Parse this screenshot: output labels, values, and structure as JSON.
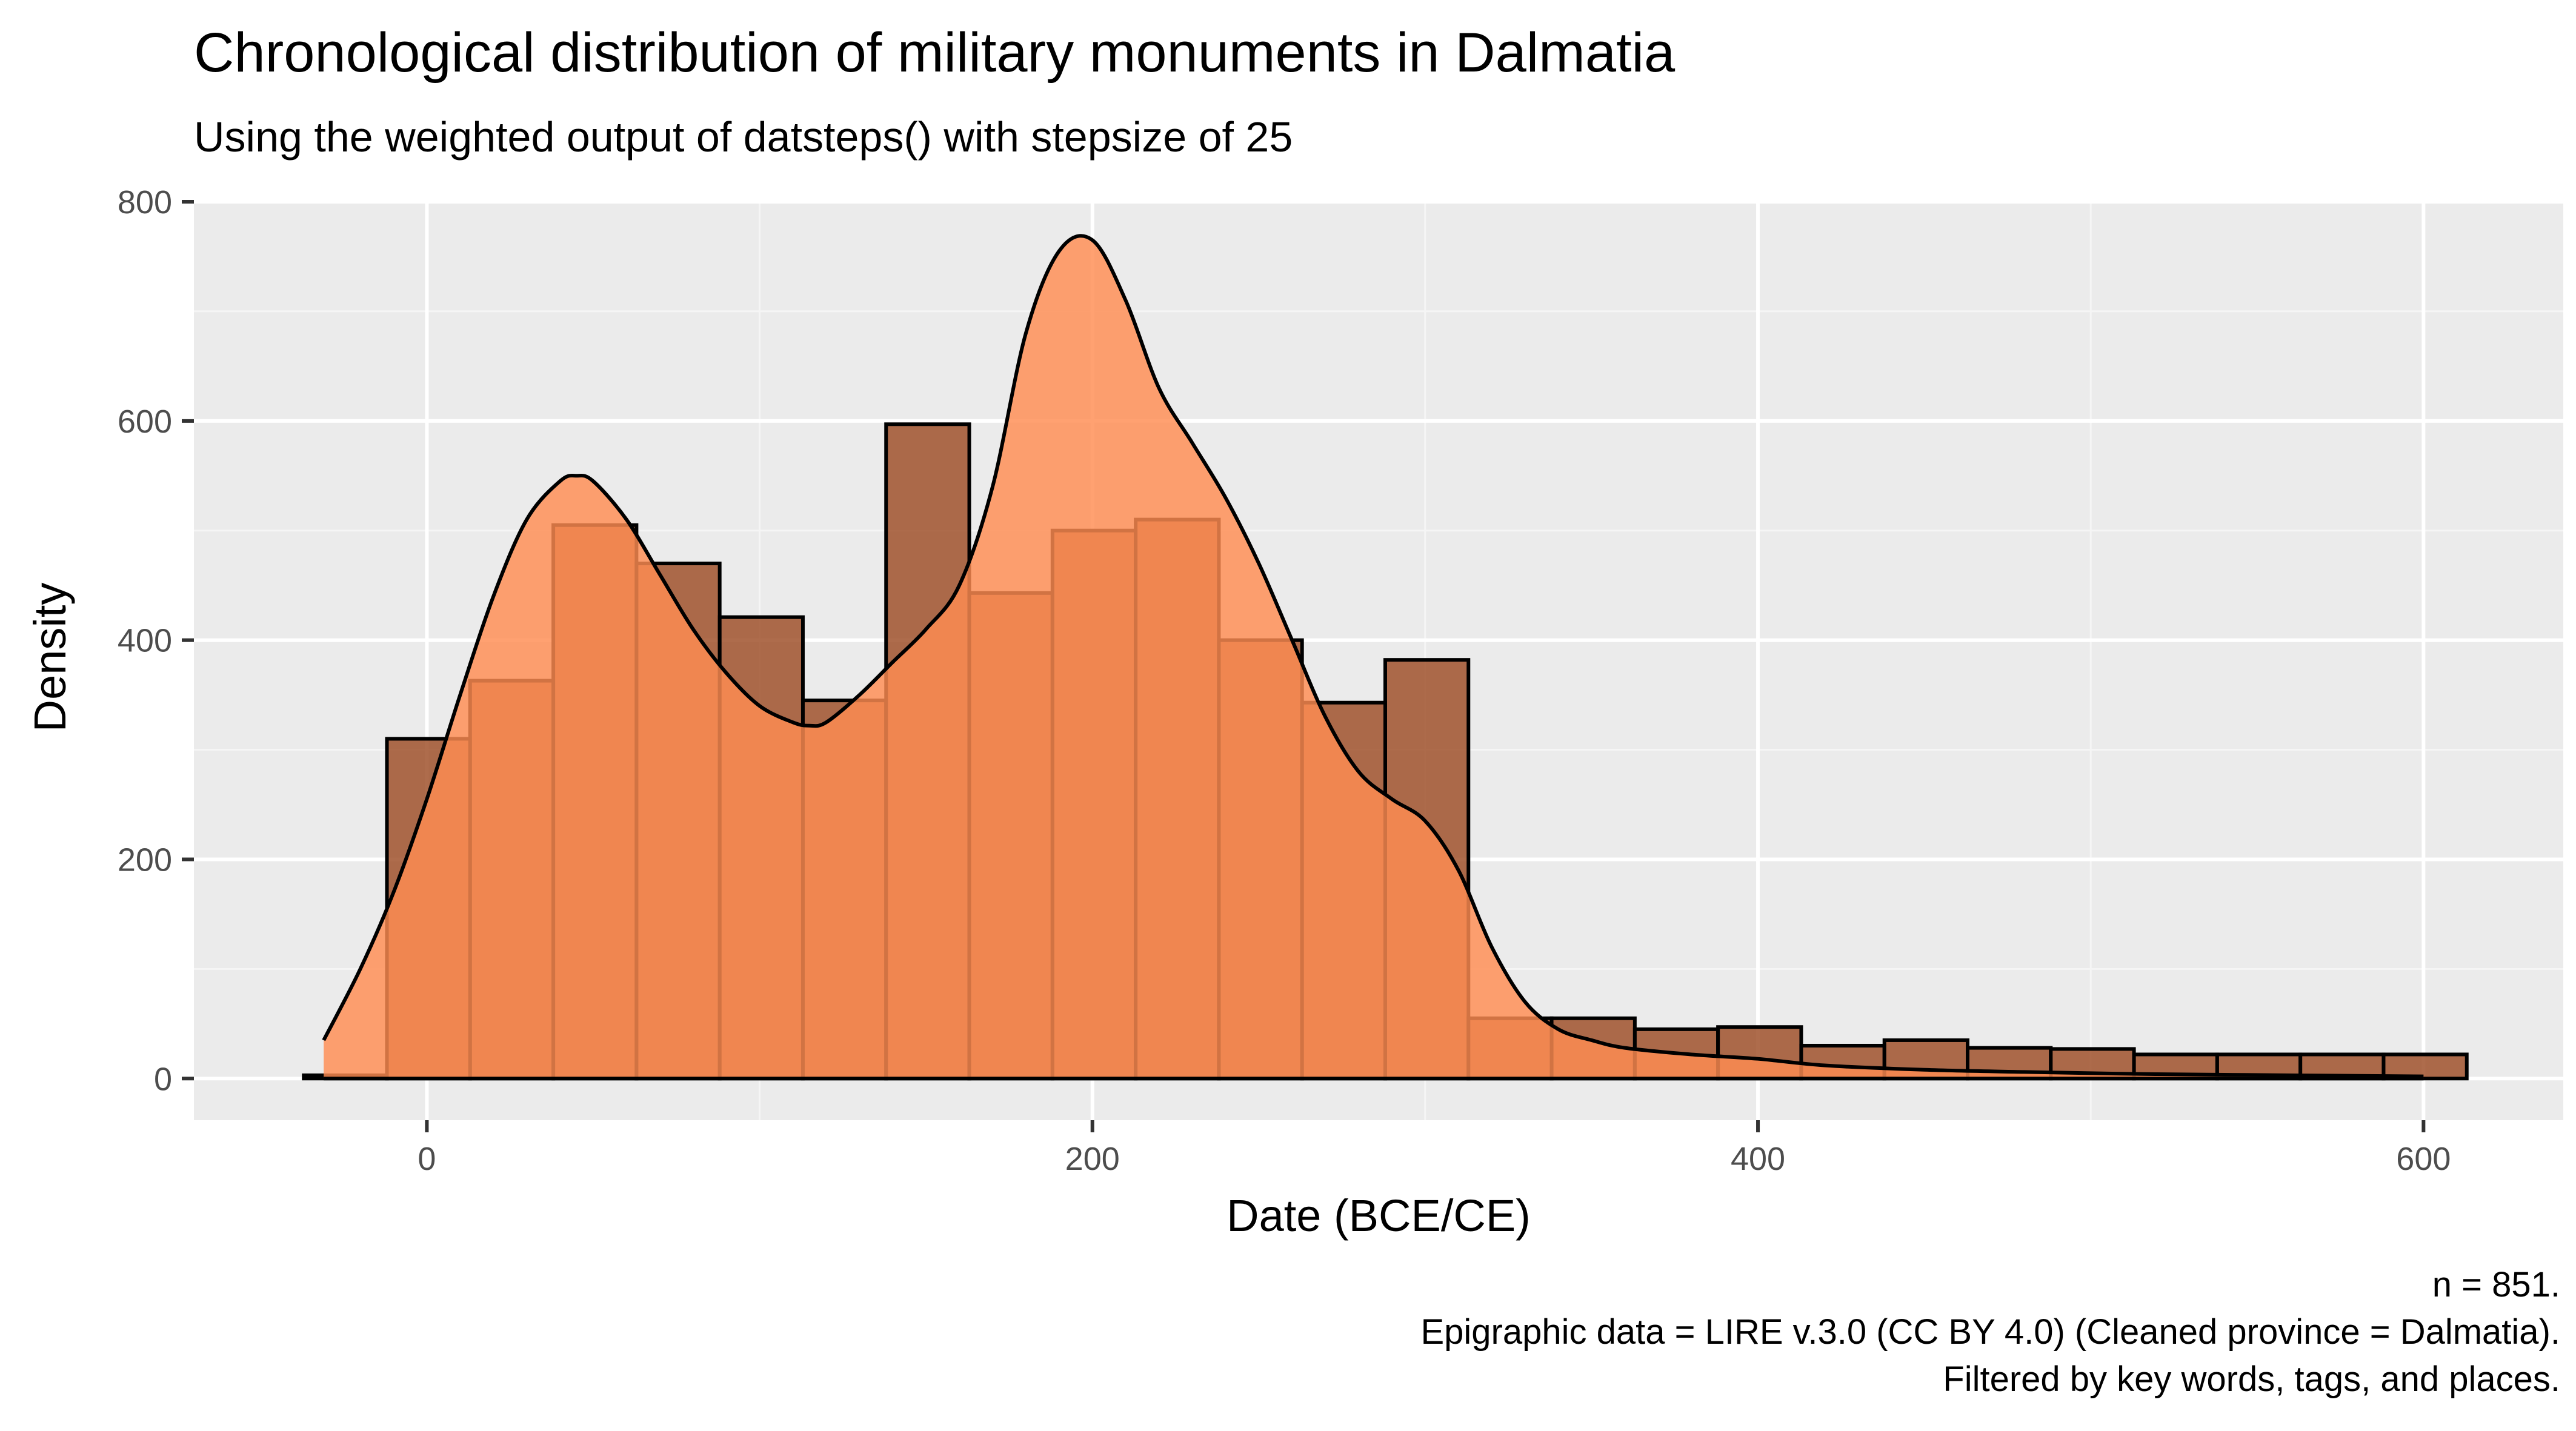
{
  "chart_data": {
    "type": "bar",
    "title": "Chronological distribution of military monuments in Dalmatia",
    "subtitle": "Using the weighted output of datsteps() with stepsize of 25",
    "xlabel": "Date (BCE/CE)",
    "ylabel": "Density",
    "xlim": [
      -70,
      642
    ],
    "ylim": [
      -38,
      800
    ],
    "x_ticks": [
      0,
      200,
      400,
      600
    ],
    "x_tick_labels": [
      "0",
      "200",
      "400",
      "600"
    ],
    "y_ticks": [
      0,
      200,
      400,
      600,
      800
    ],
    "y_tick_labels": [
      "0",
      "200",
      "400",
      "600",
      "800"
    ],
    "grid": true,
    "legend": "none",
    "caption": [
      "n = 851.",
      "Epigraphic data = LIRE v.3.0 (CC BY 4.0) (Cleaned province = Dalmatia).",
      "Filtered by key words, tags, and places."
    ],
    "colors": {
      "panel_background": "#ebebeb",
      "grid_major": "#ffffff",
      "grid_minor": "#f5f5f5",
      "histogram_fill": "#a0522d",
      "density_fill": "#ff8c52",
      "outline": "#000000"
    },
    "series": [
      {
        "type": "histogram",
        "bin_width": 25,
        "bins": [
          {
            "x0": -37,
            "x1": -12,
            "value": 3
          },
          {
            "x0": -12,
            "x1": 13,
            "value": 310
          },
          {
            "x0": 13,
            "x1": 38,
            "value": 363
          },
          {
            "x0": 38,
            "x1": 63,
            "value": 505
          },
          {
            "x0": 63,
            "x1": 88,
            "value": 470
          },
          {
            "x0": 88,
            "x1": 113,
            "value": 421
          },
          {
            "x0": 113,
            "x1": 138,
            "value": 345
          },
          {
            "x0": 138,
            "x1": 163,
            "value": 597
          },
          {
            "x0": 163,
            "x1": 188,
            "value": 443
          },
          {
            "x0": 188,
            "x1": 213,
            "value": 500
          },
          {
            "x0": 213,
            "x1": 238,
            "value": 510
          },
          {
            "x0": 238,
            "x1": 263,
            "value": 400
          },
          {
            "x0": 263,
            "x1": 288,
            "value": 343
          },
          {
            "x0": 288,
            "x1": 313,
            "value": 382
          },
          {
            "x0": 313,
            "x1": 338,
            "value": 55
          },
          {
            "x0": 338,
            "x1": 363,
            "value": 55
          },
          {
            "x0": 363,
            "x1": 388,
            "value": 45
          },
          {
            "x0": 388,
            "x1": 413,
            "value": 47
          },
          {
            "x0": 413,
            "x1": 438,
            "value": 30
          },
          {
            "x0": 438,
            "x1": 463,
            "value": 35
          },
          {
            "x0": 463,
            "x1": 488,
            "value": 28
          },
          {
            "x0": 488,
            "x1": 513,
            "value": 27
          },
          {
            "x0": 513,
            "x1": 538,
            "value": 22
          },
          {
            "x0": 538,
            "x1": 563,
            "value": 22
          },
          {
            "x0": 563,
            "x1": 588,
            "value": 22
          },
          {
            "x0": 588,
            "x1": 613,
            "value": 22
          }
        ]
      },
      {
        "type": "density",
        "x": [
          -31,
          -20,
          -10,
          0,
          10,
          20,
          30,
          40,
          45,
          50,
          60,
          70,
          80,
          90,
          100,
          110,
          115,
          120,
          130,
          140,
          150,
          160,
          170,
          180,
          190,
          200,
          210,
          220,
          230,
          240,
          250,
          260,
          270,
          280,
          290,
          300,
          310,
          320,
          330,
          340,
          350,
          360,
          380,
          400,
          420,
          450,
          480,
          520,
          560,
          600
        ],
        "y": [
          35,
          100,
          170,
          255,
          350,
          440,
          510,
          545,
          550,
          545,
          510,
          460,
          410,
          370,
          340,
          325,
          322,
          325,
          350,
          380,
          410,
          450,
          540,
          680,
          755,
          765,
          710,
          630,
          580,
          530,
          470,
          400,
          330,
          280,
          255,
          235,
          190,
          120,
          70,
          45,
          35,
          28,
          22,
          18,
          12,
          8,
          6,
          4,
          3,
          2
        ]
      }
    ]
  }
}
